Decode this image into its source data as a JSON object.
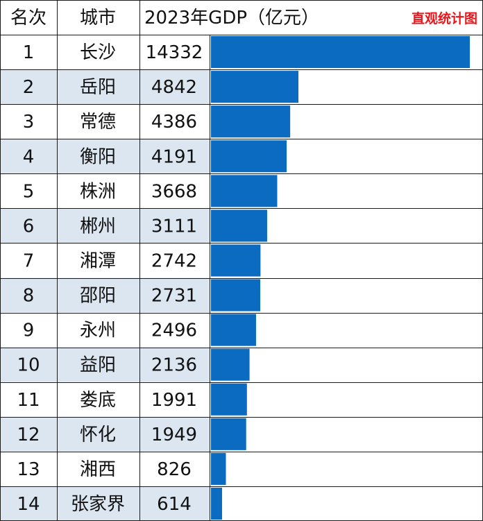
{
  "table": {
    "headers": {
      "rank": "名次",
      "city": "城市",
      "gdp": "2023年GDP（亿元）"
    },
    "brand": "直观统计图"
  },
  "colors": {
    "bar": "#0a6bc1",
    "row_alt": "#dce6f1",
    "row_plain": "#ffffff",
    "grid": "#1a1a1a",
    "brand": "#e8161b"
  },
  "chart_data": {
    "type": "bar",
    "orientation": "horizontal",
    "title": "2023年GDP（亿元）",
    "xlim": [
      0,
      14332
    ],
    "rows": [
      {
        "rank": "1",
        "city": "长沙",
        "value": 14332
      },
      {
        "rank": "2",
        "city": "岳阳",
        "value": 4842
      },
      {
        "rank": "3",
        "city": "常德",
        "value": 4386
      },
      {
        "rank": "4",
        "city": "衡阳",
        "value": 4191
      },
      {
        "rank": "5",
        "city": "株洲",
        "value": 3668
      },
      {
        "rank": "6",
        "city": "郴州",
        "value": 3111
      },
      {
        "rank": "7",
        "city": "湘潭",
        "value": 2742
      },
      {
        "rank": "8",
        "city": "邵阳",
        "value": 2731
      },
      {
        "rank": "9",
        "city": "永州",
        "value": 2496
      },
      {
        "rank": "10",
        "city": "益阳",
        "value": 2136
      },
      {
        "rank": "11",
        "city": "娄底",
        "value": 1991
      },
      {
        "rank": "12",
        "city": "怀化",
        "value": 1949
      },
      {
        "rank": "13",
        "city": "湘西",
        "value": 826
      },
      {
        "rank": "14",
        "city": "张家界",
        "value": 614
      }
    ]
  }
}
